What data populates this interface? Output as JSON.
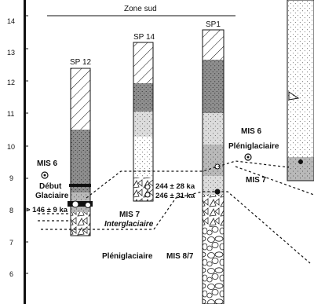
{
  "zone_label": "Zone sud",
  "depth_axis": {
    "labels": [
      "14",
      "13",
      "12",
      "11",
      "10",
      "9",
      "8",
      "7",
      "6"
    ]
  },
  "columns": {
    "sp12": {
      "label": "SP 12"
    },
    "sp14": {
      "label": "SP 14"
    },
    "sp1": {
      "label": "SP1"
    }
  },
  "annotations": {
    "mis6_left": "MIS 6",
    "debut": "Début",
    "glaciaire": "Glaciaire",
    "age_sp12": "> 146 ± 9 ka",
    "age_sp14_a": "244 ± 28 ka",
    "age_sp14_b": "246 ± 31 ka",
    "mis6_right": "MIS 6",
    "pleniglaciaire_right": "Pléniglaciaire",
    "mis7_right": "MIS 7",
    "mis7_center": "MIS 7",
    "interglaciaire": "Interglaciaire",
    "pleniglaciaire_bottom": "Pléniglaciaire",
    "mis87": "MIS 8/7"
  },
  "colors": {
    "line": "#111111",
    "dark_grey": "#8a8a8a",
    "mid_grey": "#a8a8a8",
    "light_grey": "#cfcfcf",
    "pale": "#e8e8e8",
    "white": "#ffffff"
  }
}
